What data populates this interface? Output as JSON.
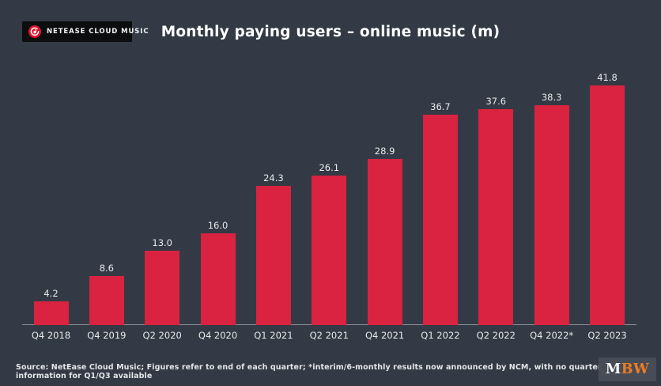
{
  "header": {
    "logo": {
      "label": "NETEASE CLOUD MUSIC",
      "icon": "netease-cloud-music-icon",
      "icon_color": "#e2122d",
      "background": "#0c0d0f"
    },
    "title": "Monthly paying users – online music (m)"
  },
  "chart_data": {
    "type": "bar",
    "title": "Monthly paying users – online music (m)",
    "categories": [
      "Q4 2018",
      "Q4 2019",
      "Q2 2020",
      "Q4 2020",
      "Q1 2021",
      "Q2 2021",
      "Q4 2021",
      "Q1 2022",
      "Q2 2022",
      "Q4 2022*",
      "Q2 2023"
    ],
    "values": [
      4.2,
      8.6,
      13.0,
      16.0,
      24.3,
      26.1,
      28.9,
      36.7,
      37.6,
      38.3,
      41.8
    ],
    "xlabel": "",
    "ylabel": "",
    "ylim": [
      0,
      44
    ],
    "grid": false,
    "legend": "none",
    "bar_color": "#da2340",
    "value_label_color": "#e8e9eb",
    "axis_label_color": "#e8e9eb",
    "value_labels": "one decimal, above each bar"
  },
  "footer": {
    "source": "Source: NetEase Cloud Music; Figures refer to end of each quarter; *interim/6-monthly results now announced by NCM, with no quarterly information for Q1/Q3 available",
    "mbw_logo": {
      "m": "M",
      "bw": "BW",
      "m_color": "#ffffff",
      "bw_color": "#f07c22",
      "background": "#474c56"
    }
  },
  "colors": {
    "background": "#343a45",
    "bar": "#da2340",
    "axis_line": "#c6cad0"
  }
}
